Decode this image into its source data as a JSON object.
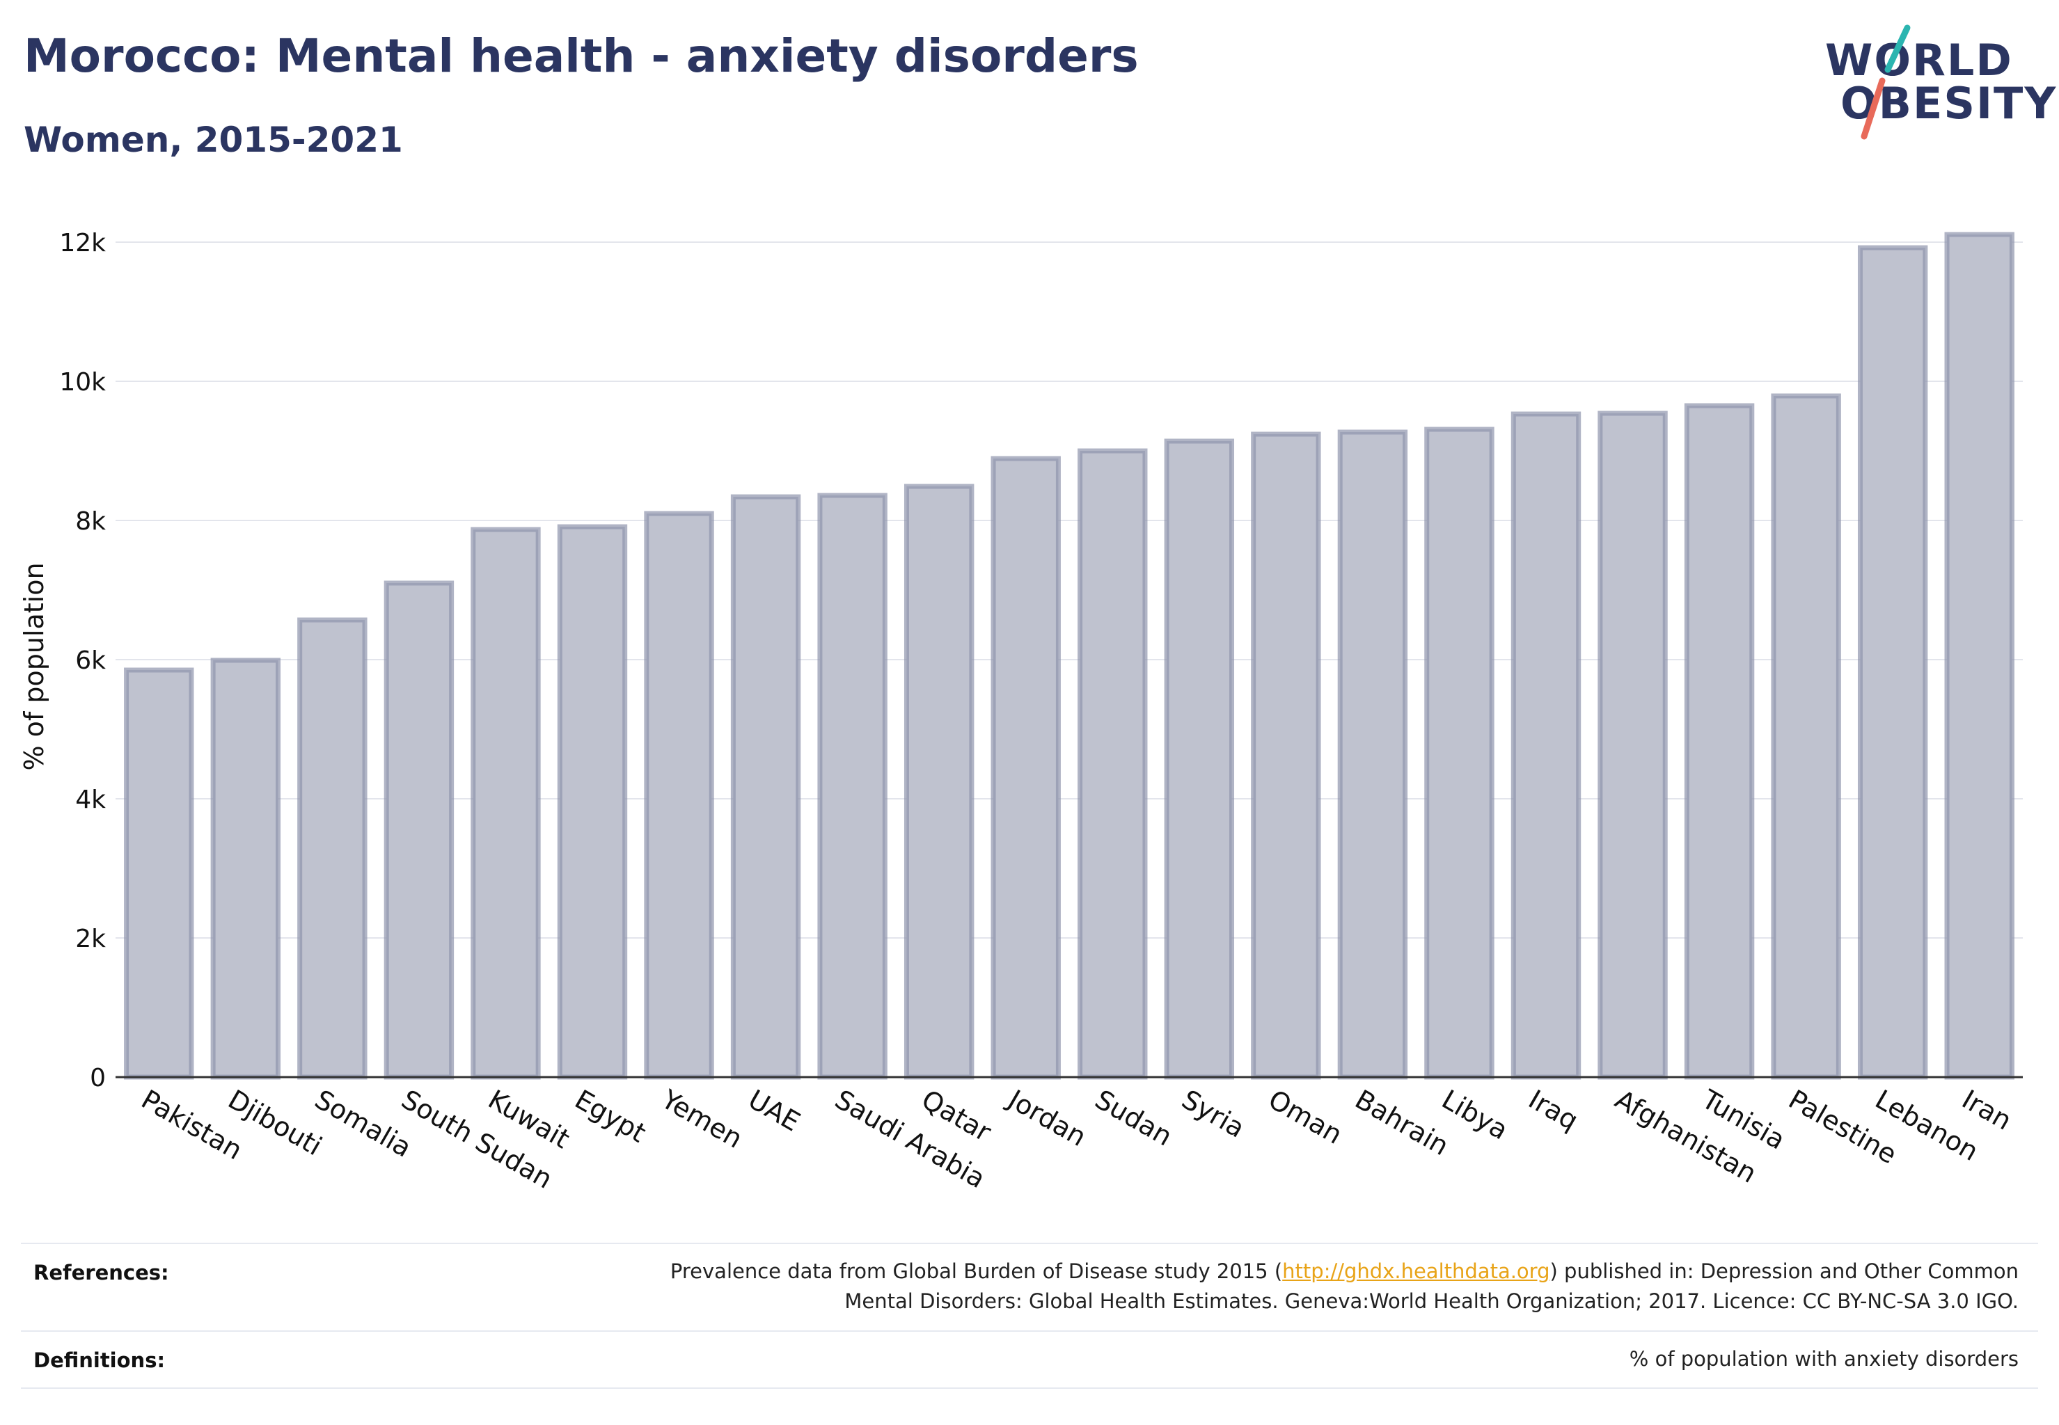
{
  "title": "Morocco: Mental health - anxiety disorders",
  "subtitle": "Women, 2015-2021",
  "logo": {
    "line1": "WORLD",
    "line2": "OBESITY",
    "accent_colors": [
      "#2bb5b0",
      "#e86a5a"
    ]
  },
  "chart_data": {
    "type": "bar",
    "title": "Morocco: Mental health - anxiety disorders",
    "subtitle": "Women, 2015-2021",
    "xlabel": "",
    "ylabel": "% of population",
    "ylim": [
      0,
      12000
    ],
    "yticks": [
      0,
      2000,
      4000,
      6000,
      8000,
      10000,
      12000
    ],
    "ytick_labels": [
      "0",
      "2k",
      "4k",
      "6k",
      "8k",
      "10k",
      "12k"
    ],
    "grid": true,
    "bar_fill": "#bfc2cf",
    "bar_stroke": "#8f94ad",
    "categories": [
      "Pakistan",
      "Djibouti",
      "Somalia",
      "South Sudan",
      "Kuwait",
      "Egypt",
      "Yemen",
      "UAE",
      "Saudi Arabia",
      "Qatar",
      "Jordan",
      "Sudan",
      "Syria",
      "Oman",
      "Bahrain",
      "Libya",
      "Iraq",
      "Afghanistan",
      "Tunisia",
      "Palestine",
      "Lebanon",
      "Iran"
    ],
    "values": [
      5850,
      5990,
      6570,
      7100,
      7870,
      7910,
      8100,
      8340,
      8360,
      8490,
      8890,
      9000,
      9140,
      9240,
      9270,
      9310,
      9530,
      9540,
      9650,
      9790,
      11920,
      12110
    ]
  },
  "footer": {
    "references_label": "References:",
    "references_line1_pre": "Prevalence data from Global Burden of Disease study 2015 (",
    "references_link": "http://ghdx.healthdata.org",
    "references_line1_post": ") published in: Depression and Other Common",
    "references_line2": "Mental Disorders: Global Health Estimates. Geneva:World Health Organization; 2017. Licence: CC BY-NC-SA 3.0 IGO.",
    "definitions_label": "Definitions:",
    "definitions_text": "% of population with anxiety disorders"
  }
}
